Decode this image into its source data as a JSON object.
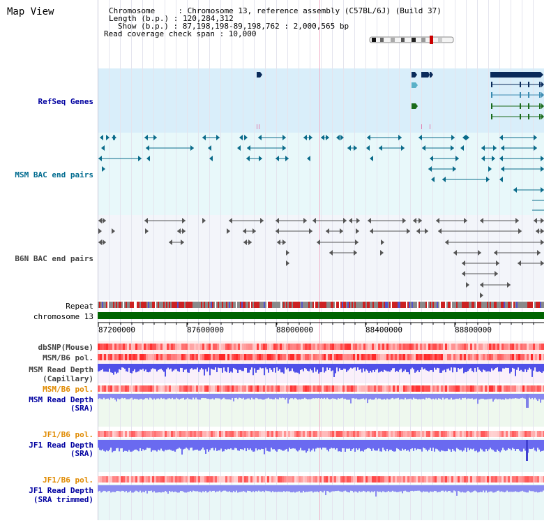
{
  "title": "Map View",
  "header": {
    "chromosome": "Chromosome     : Chromosome 13, reference assembly (C57BL/6J) (Build 37)",
    "length": "Length (b.p.) : 120,284,312",
    "show": "Show (b.p.) : 87,198,198-89,198,762 : 2,000,565 bp",
    "span": "Read coverage check span : 10,000"
  },
  "tracks": {
    "refseq": "RefSeq Genes",
    "msm_bac": "MSM BAC end pairs",
    "b6n_bac": "B6N BAC end pairs",
    "repeat": "Repeat",
    "chromosome": "chromosome 13",
    "dbsnp": "dbSNP(Mouse)",
    "msm_b6_pol_1": "MSM/B6 pol.",
    "msm_read_depth_cap_1": "MSM Read Depth",
    "msm_read_depth_cap_2": "(Capillary)",
    "msm_b6_pol_2": "MSM/B6 pol.",
    "msm_read_depth_sra_1": "MSM Read Depth",
    "msm_read_depth_sra_2": "(SRA)",
    "jf1_b6_pol_1": "JF1/B6 pol.",
    "jf1_read_depth_1": "JF1 Read Depth",
    "jf1_read_depth_2": "(SRA)",
    "jf1_b6_pol_2": "JF1/B6 pol.",
    "jf1_read_depth_trim_1": "JF1 Read Depth",
    "jf1_read_depth_trim_2": "(SRA trimmed)"
  },
  "axis_ticks": [
    "87200000",
    "87600000",
    "88000000",
    "88400000",
    "88800000"
  ],
  "colors": {
    "refseq_bg": "#d9eefa",
    "msm_bac_bg": "#e8f8fa",
    "b6n_bg": "#f3f5fa",
    "gene_dark": "#0a2a5a",
    "gene_teal": "#4aa6c4",
    "gene_green": "#1a6b1a",
    "chrom_bar": "#006400",
    "msm_bac_line": "#0a6b8a",
    "b6n_line": "#555555",
    "repeat_red": "#cc2222",
    "repeat_gray": "#8a8a8a",
    "depth_blue": "#5a5af0",
    "polymorph_red": "#e03030"
  }
}
